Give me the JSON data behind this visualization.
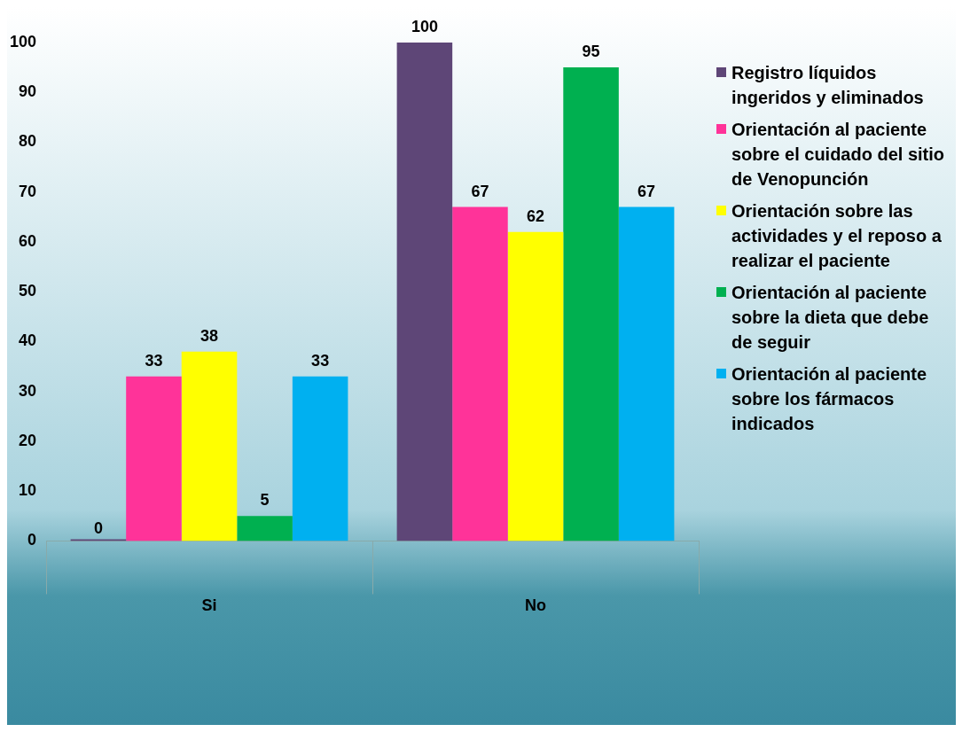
{
  "chart_data": {
    "type": "bar",
    "categories": [
      "Si",
      "No"
    ],
    "series": [
      {
        "name": "Registro líquidos ingeridos y eliminados",
        "color": "#5e4677",
        "values": [
          0,
          100
        ]
      },
      {
        "name": "Orientación al paciente sobre el cuidado del sitio de Venopunción",
        "color": "#ff3399",
        "values": [
          33,
          67
        ]
      },
      {
        "name": "Orientación sobre las actividades y el reposo a realizar el paciente",
        "color": "#ffff00",
        "values": [
          38,
          62
        ]
      },
      {
        "name": "Orientación al paciente sobre la dieta que debe de seguir",
        "color": "#00b050",
        "values": [
          5,
          95
        ]
      },
      {
        "name": "Orientación al paciente sobre los fármacos indicados",
        "color": "#00b0f0",
        "values": [
          33,
          67
        ]
      }
    ],
    "ylim": [
      0,
      100
    ],
    "yticks": [
      0,
      10,
      20,
      30,
      40,
      50,
      60,
      70,
      80,
      90,
      100
    ],
    "grid": false,
    "legend": "right",
    "data_labels": true
  }
}
